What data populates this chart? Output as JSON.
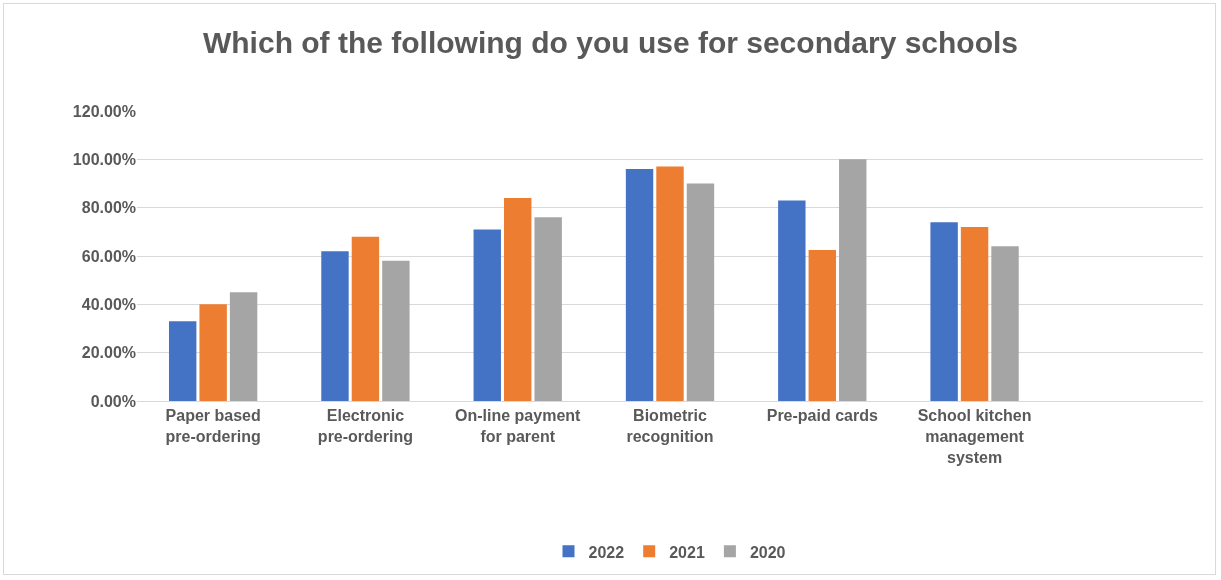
{
  "chart_data": {
    "type": "bar",
    "title": "Which of the following do you use for secondary schools",
    "categories": [
      "Paper based pre-ordering",
      "Electronic pre-ordering",
      "On-line payment for parent",
      "Biometric recognition",
      "Pre-paid cards",
      "School kitchen management system",
      null
    ],
    "series": [
      {
        "name": "2022",
        "color": "#4472c4",
        "values": [
          33,
          62,
          71,
          96,
          83,
          74,
          null
        ]
      },
      {
        "name": "2021",
        "color": "#ed7d31",
        "values": [
          40,
          68,
          84,
          97,
          62.5,
          72,
          null
        ]
      },
      {
        "name": "2020",
        "color": "#a5a5a5",
        "values": [
          45,
          58,
          76,
          90,
          100,
          64,
          null
        ]
      }
    ],
    "ylim": [
      0,
      120
    ],
    "yticks": [
      {
        "value": 0,
        "label": "0.00%"
      },
      {
        "value": 20,
        "label": "20.00%"
      },
      {
        "value": 40,
        "label": "40.00%"
      },
      {
        "value": 60,
        "label": "60.00%"
      },
      {
        "value": 80,
        "label": "80.00%"
      },
      {
        "value": 100,
        "label": "100.00%"
      },
      {
        "value": 120,
        "label": "120.00%"
      }
    ],
    "grid": "y",
    "legend": "bottom"
  }
}
